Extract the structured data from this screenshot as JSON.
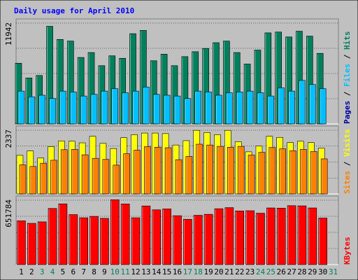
{
  "chart_data": [
    {
      "type": "bar",
      "title": "Daily usage for April 2010",
      "categories": [
        "1",
        "2",
        "3",
        "4",
        "5",
        "6",
        "7",
        "8",
        "9",
        "10",
        "11",
        "12",
        "13",
        "14",
        "15",
        "16",
        "17",
        "18",
        "19",
        "20",
        "21",
        "22",
        "23",
        "24",
        "25",
        "26",
        "27",
        "28",
        "29",
        "30",
        "31"
      ],
      "weekend_days": [
        "3",
        "4",
        "10",
        "11",
        "17",
        "18",
        "24",
        "25",
        "31"
      ],
      "y_tick_label": "11942",
      "ylim": [
        0,
        12800
      ],
      "right_axis_labels": [
        "Pages",
        "Files",
        "Hits"
      ],
      "series": [
        {
          "name": "Hits",
          "color": "#00805c",
          "values": [
            7400,
            5600,
            5900,
            11900,
            10300,
            10100,
            8100,
            8700,
            7100,
            8300,
            8000,
            11000,
            11400,
            7700,
            8500,
            7100,
            8200,
            8800,
            9200,
            9900,
            10100,
            8700,
            7300,
            9000,
            11100,
            11200,
            10600,
            11300,
            10700,
            8600,
            0
          ]
        },
        {
          "name": "Files",
          "color": "#00c0ff",
          "values": [
            4000,
            3300,
            3500,
            3100,
            4000,
            3900,
            3400,
            3600,
            4000,
            4300,
            3800,
            4000,
            4500,
            3600,
            3500,
            3400,
            3100,
            4000,
            3900,
            3500,
            3800,
            3900,
            4000,
            3800,
            3400,
            4400,
            4000,
            5300,
            4800,
            4300,
            0
          ]
        },
        {
          "name": "Pages",
          "color": "#0000a0",
          "values": [
            0,
            0,
            0,
            0,
            0,
            0,
            0,
            0,
            0,
            0,
            0,
            0,
            0,
            0,
            0,
            0,
            0,
            0,
            0,
            0,
            0,
            0,
            0,
            0,
            0,
            0,
            0,
            0,
            0,
            0,
            0
          ]
        }
      ]
    },
    {
      "type": "bar",
      "categories": [
        "1",
        "2",
        "3",
        "4",
        "5",
        "6",
        "7",
        "8",
        "9",
        "10",
        "11",
        "12",
        "13",
        "14",
        "15",
        "16",
        "17",
        "18",
        "19",
        "20",
        "21",
        "22",
        "23",
        "24",
        "25",
        "26",
        "27",
        "28",
        "29",
        "30",
        "31"
      ],
      "y_tick_label": "2337",
      "ylim": [
        0,
        2500
      ],
      "right_axis_labels": [
        "Sites",
        "Visits"
      ],
      "series": [
        {
          "name": "Visits",
          "color": "#ffff00",
          "values": [
            1420,
            1580,
            1320,
            1740,
            1950,
            1940,
            1880,
            2120,
            1860,
            1670,
            2070,
            2180,
            2240,
            2240,
            2220,
            1800,
            1960,
            2340,
            2260,
            2180,
            2340,
            1920,
            1550,
            1760,
            2120,
            2080,
            1890,
            1940,
            1890,
            1680,
            0
          ]
        },
        {
          "name": "Sites",
          "color": "#ff8000",
          "values": [
            1070,
            1010,
            1130,
            1240,
            1630,
            1640,
            1440,
            1310,
            1270,
            1060,
            1480,
            1610,
            1740,
            1720,
            1700,
            1260,
            1380,
            1830,
            1800,
            1750,
            1720,
            1750,
            1430,
            1530,
            1710,
            1660,
            1590,
            1640,
            1560,
            1290,
            0
          ]
        }
      ]
    },
    {
      "type": "bar",
      "categories": [
        "1",
        "2",
        "3",
        "4",
        "5",
        "6",
        "7",
        "8",
        "9",
        "10",
        "11",
        "12",
        "13",
        "14",
        "15",
        "16",
        "17",
        "18",
        "19",
        "20",
        "21",
        "22",
        "23",
        "24",
        "25",
        "26",
        "27",
        "28",
        "29",
        "30",
        "31"
      ],
      "y_tick_label": "651784",
      "ylim": [
        0,
        690000
      ],
      "right_axis_labels": [
        "KBytes"
      ],
      "series": [
        {
          "name": "KBytes",
          "color": "#ff0000",
          "values": [
            440000,
            415000,
            430000,
            565000,
            611000,
            503000,
            471000,
            485000,
            465000,
            652000,
            610000,
            471000,
            590000,
            551000,
            560000,
            492000,
            456000,
            496000,
            506000,
            562000,
            573000,
            540000,
            542000,
            517000,
            570000,
            568000,
            593000,
            591000,
            570000,
            468000,
            0
          ]
        }
      ]
    }
  ]
}
